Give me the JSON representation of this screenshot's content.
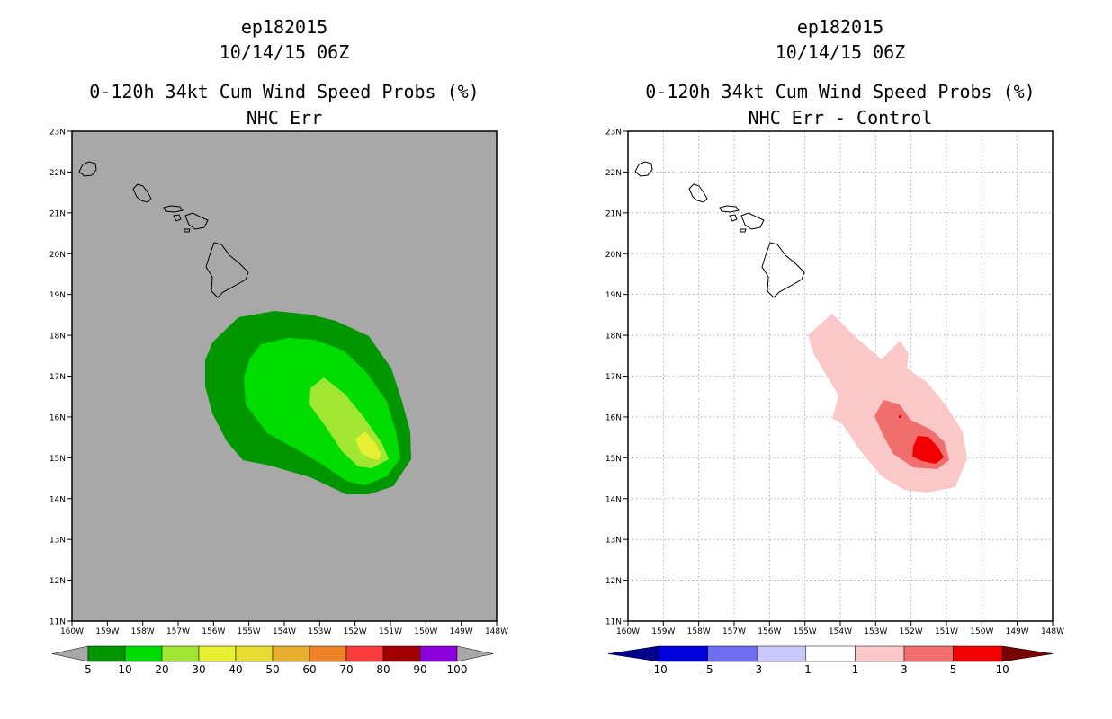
{
  "left": {
    "storm_id": "ep182015",
    "datetime": "10/14/15 06Z",
    "title": "0-120h 34kt Cum Wind Speed Probs (%)",
    "subtitle": "NHC Err",
    "lat_labels": [
      "23N",
      "22N",
      "21N",
      "20N",
      "19N",
      "18N",
      "17N",
      "16N",
      "15N",
      "14N",
      "13N",
      "12N",
      "11N"
    ],
    "lon_labels": [
      "160W",
      "159W",
      "158W",
      "157W",
      "156W",
      "155W",
      "154W",
      "153W",
      "152W",
      "151W",
      "150W",
      "149W",
      "148W"
    ],
    "background_color": "#a8a8a8",
    "colorbar": {
      "labels": [
        "5",
        "10",
        "20",
        "30",
        "40",
        "50",
        "60",
        "70",
        "80",
        "90",
        "100"
      ],
      "colors": [
        "#009600",
        "#00dc00",
        "#a0e632",
        "#e6f032",
        "#e6dc32",
        "#e6af2d",
        "#f08228",
        "#fa3c3c",
        "#a00000",
        "#8c00dc"
      ],
      "end_color": "#a8a8a8"
    },
    "contour_colors": {
      "level_5": "#009600",
      "level_10": "#00dc00",
      "level_20": "#a0e632",
      "level_30": "#e6f032"
    }
  },
  "right": {
    "storm_id": "ep182015",
    "datetime": "10/14/15 06Z",
    "title": "0-120h 34kt Cum Wind Speed Probs (%)",
    "subtitle": "NHC Err - Control",
    "lat_labels": [
      "23N",
      "22N",
      "21N",
      "20N",
      "19N",
      "18N",
      "17N",
      "16N",
      "15N",
      "14N",
      "13N",
      "12N",
      "11N"
    ],
    "lon_labels": [
      "160W",
      "159W",
      "158W",
      "157W",
      "156W",
      "155W",
      "154W",
      "153W",
      "152W",
      "151W",
      "150W",
      "149W",
      "148W"
    ],
    "background_color": "#ffffff",
    "colorbar": {
      "labels": [
        "-10",
        "-5",
        "-3",
        "-1",
        "1",
        "3",
        "5",
        "10"
      ],
      "colors": [
        "#0000dc",
        "#6e6ef0",
        "#c8c8fa",
        "#ffffff",
        "#fac8c8",
        "#f06e6e",
        "#f00000"
      ],
      "low_end_color": "#00008c",
      "high_end_color": "#780000"
    },
    "contour_colors": {
      "level_1": "#fac8c8",
      "level_3": "#f06e6e",
      "level_5": "#f00000"
    }
  }
}
